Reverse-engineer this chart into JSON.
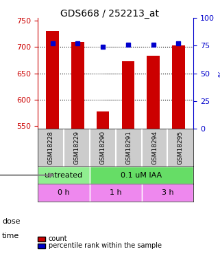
{
  "title": "GDS668 / 252213_at",
  "samples": [
    "GSM18228",
    "GSM18229",
    "GSM18290",
    "GSM18291",
    "GSM18294",
    "GSM18295"
  ],
  "counts": [
    730,
    710,
    578,
    673,
    684,
    703
  ],
  "percentiles": [
    77,
    77,
    74,
    76,
    76,
    77
  ],
  "ylim_left": [
    545,
    755
  ],
  "ylim_right": [
    0,
    100
  ],
  "yticks_left": [
    550,
    600,
    650,
    700,
    750
  ],
  "yticks_right": [
    0,
    25,
    50,
    75,
    100
  ],
  "bar_color": "#cc0000",
  "dot_color": "#0000cc",
  "dose_groups": [
    {
      "label": "untreated",
      "start": 0,
      "end": 2,
      "color": "#99ff99"
    },
    {
      "label": "0.1 uM IAA",
      "start": 2,
      "end": 6,
      "color": "#ff66ff"
    }
  ],
  "time_groups": [
    {
      "label": "0 h",
      "start": 0,
      "end": 2,
      "color": "#ff99ff"
    },
    {
      "label": "1 h",
      "start": 2,
      "end": 4,
      "color": "#cc66ff"
    },
    {
      "label": "3 h",
      "start": 4,
      "end": 6,
      "color": "#ff99ff"
    }
  ],
  "dose_label": "dose",
  "time_label": "time",
  "legend_count_label": "count",
  "legend_pct_label": "percentile rank within the sample",
  "xlabel_color": "#cc0000",
  "ylabel_right_color": "#0000cc",
  "grid_color": "#000000",
  "sample_box_color": "#cccccc"
}
